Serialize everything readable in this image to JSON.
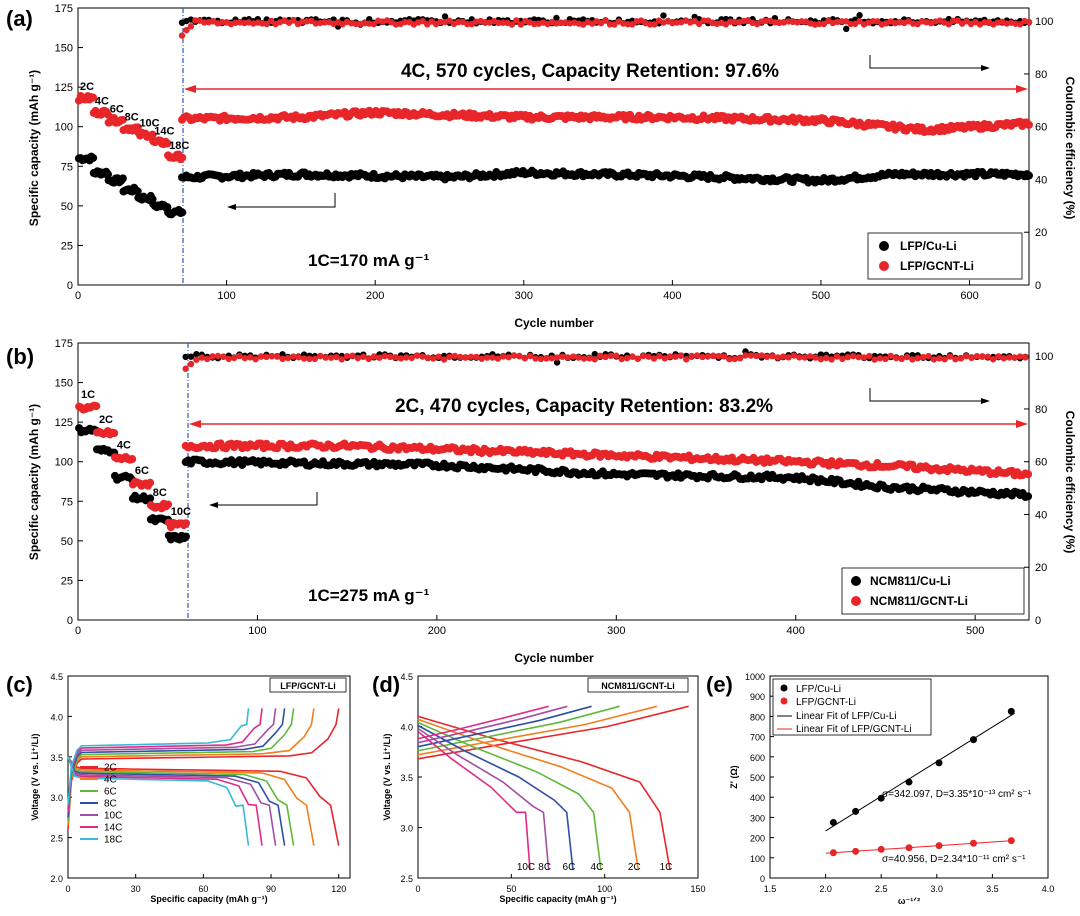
{
  "panels": {
    "a": {
      "label": "(a)",
      "xlabel": "Cycle number",
      "ylabel_left": "Specific capacity (mAh g⁻¹)",
      "ylabel_right": "Coulombic efficiency (%)",
      "xticks": [
        "0",
        "100",
        "200",
        "300",
        "400",
        "500",
        "600"
      ],
      "yticks_left": [
        "0",
        "25",
        "50",
        "75",
        "100",
        "125",
        "150",
        "175"
      ],
      "yticks_right": [
        "0",
        "20",
        "40",
        "60",
        "80",
        "100"
      ],
      "annotation": "4C, 570 cycles, Capacity Retention: 97.6%",
      "current_note": "1C=170 mA g⁻¹",
      "rate_labels": [
        "2C",
        "4C",
        "6C",
        "8C",
        "10C",
        "14C",
        "18C"
      ],
      "legend": [
        "LFP/Cu-Li",
        "LFP/GCNT-Li"
      ]
    },
    "b": {
      "label": "(b)",
      "xlabel": "Cycle number",
      "ylabel_left": "Specific capacity (mAh g⁻¹)",
      "ylabel_right": "Coulombic efficiency (%)",
      "xticks": [
        "0",
        "100",
        "200",
        "300",
        "400",
        "500"
      ],
      "yticks_left": [
        "0",
        "25",
        "50",
        "75",
        "100",
        "125",
        "150",
        "175"
      ],
      "yticks_right": [
        "0",
        "20",
        "40",
        "60",
        "80",
        "100"
      ],
      "annotation": "2C, 470 cycles, Capacity Retention: 83.2%",
      "current_note": "1C=275 mA g⁻¹",
      "rate_labels": [
        "1C",
        "2C",
        "4C",
        "6C",
        "8C",
        "10C"
      ],
      "legend": [
        "NCM811/Cu-Li",
        "NCM811/GCNT-Li"
      ]
    },
    "c": {
      "label": "(c)",
      "box": "LFP/GCNT-Li",
      "xlabel": "Specific capacity (mAh g⁻¹)",
      "ylabel": "Voltage (V vs. Li⁺/Li)",
      "xticks": [
        "0",
        "30",
        "60",
        "90",
        "120"
      ],
      "yticks": [
        "2.0",
        "2.5",
        "3.0",
        "3.5",
        "4.0",
        "4.5"
      ],
      "legend": [
        "2C",
        "4C",
        "6C",
        "8C",
        "10C",
        "14C",
        "18C"
      ]
    },
    "d": {
      "label": "(d)",
      "box": "NCM811/GCNT-Li",
      "xlabel": "Specific capacity (mAh g⁻¹)",
      "ylabel": "Voltage (V vs. Li⁺/Li)",
      "xticks": [
        "0",
        "50",
        "100",
        "150"
      ],
      "yticks": [
        "2.5",
        "3.0",
        "3.5",
        "4.0",
        "4.5"
      ],
      "curve_labels": [
        "10C",
        "8C",
        "6C",
        "4C",
        "2C",
        "1C"
      ]
    },
    "e": {
      "label": "(e)",
      "xlabel": "ω⁻¹ᐟ²",
      "ylabel": "Z′ (Ω)",
      "xticks": [
        "1.5",
        "2.0",
        "2.5",
        "3.0",
        "3.5",
        "4.0"
      ],
      "yticks": [
        "0",
        "100",
        "200",
        "300",
        "400",
        "500",
        "600",
        "700",
        "800",
        "900",
        "1000"
      ],
      "legend": [
        "LFP/Cu-Li",
        "LFP/GCNT-Li",
        "Linear Fit of LFP/Cu-Li",
        "Linear Fit of LFP/GCNT-Li"
      ],
      "fit1": "σ=342.097, D=3.35*10⁻¹³ cm² s⁻¹",
      "fit2": "σ=40.956, D=2.34*10⁻¹¹ cm² s⁻¹"
    }
  },
  "colors": {
    "red": "#e8262a",
    "black": "#000000",
    "blue": "#1f4e9e"
  },
  "chart_data": [
    {
      "id": "a",
      "type": "scatter",
      "xlim": [
        0,
        640
      ],
      "ylim": [
        0,
        175
      ],
      "y2lim": [
        0,
        105
      ],
      "series": [
        {
          "name": "LFP/Cu-Li capacity",
          "color": "black",
          "rate_steps": [
            [
              0,
              10,
              80
            ],
            [
              10,
              20,
              71
            ],
            [
              20,
              30,
              66
            ],
            [
              30,
              40,
              60
            ],
            [
              40,
              50,
              55
            ],
            [
              50,
              60,
              50
            ],
            [
              60,
              70,
              46
            ]
          ],
          "long": [
            [
              70,
              68
            ],
            [
              150,
              70
            ],
            [
              250,
              68
            ],
            [
              300,
              71
            ],
            [
              400,
              69
            ],
            [
              500,
              66
            ],
            [
              550,
              70
            ],
            [
              640,
              70
            ]
          ]
        },
        {
          "name": "LFP/GCNT-Li capacity",
          "color": "red",
          "rate_steps": [
            [
              0,
              10,
              118
            ],
            [
              10,
              20,
              109
            ],
            [
              20,
              30,
              104
            ],
            [
              30,
              40,
              99
            ],
            [
              40,
              50,
              95
            ],
            [
              50,
              60,
              90
            ],
            [
              60,
              70,
              81
            ]
          ],
          "long": [
            [
              70,
              105
            ],
            [
              150,
              106
            ],
            [
              200,
              109
            ],
            [
              300,
              106
            ],
            [
              400,
              106
            ],
            [
              500,
              104
            ],
            [
              570,
              98
            ],
            [
              640,
              102
            ]
          ]
        },
        {
          "name": "LFP/Cu-Li CE",
          "color": "black",
          "ce": 100
        },
        {
          "name": "LFP/GCNT-Li CE",
          "color": "red",
          "ce": 99.5
        }
      ]
    },
    {
      "id": "b",
      "type": "scatter",
      "xlim": [
        0,
        530
      ],
      "ylim": [
        0,
        175
      ],
      "y2lim": [
        0,
        105
      ],
      "series": [
        {
          "name": "NCM811/Cu-Li capacity",
          "color": "black",
          "rate_steps": [
            [
              0,
              10,
              120
            ],
            [
              10,
              20,
              107
            ],
            [
              20,
              30,
              90
            ],
            [
              30,
              40,
              77
            ],
            [
              40,
              50,
              63
            ],
            [
              50,
              60,
              52
            ]
          ],
          "long": [
            [
              60,
              100
            ],
            [
              200,
              98
            ],
            [
              300,
              92
            ],
            [
              400,
              90
            ],
            [
              450,
              84
            ],
            [
              530,
              79
            ]
          ]
        },
        {
          "name": "NCM811/GCNT-Li capacity",
          "color": "red",
          "rate_steps": [
            [
              0,
              10,
              134
            ],
            [
              10,
              20,
              118
            ],
            [
              20,
              30,
              102
            ],
            [
              30,
              40,
              86
            ],
            [
              40,
              50,
              72
            ],
            [
              50,
              60,
              60
            ]
          ],
          "long": [
            [
              60,
              110
            ],
            [
              150,
              110
            ],
            [
              250,
              106
            ],
            [
              350,
              102
            ],
            [
              400,
              100
            ],
            [
              460,
              97
            ],
            [
              530,
              92
            ]
          ]
        },
        {
          "name": "NCM811/Cu-Li CE",
          "color": "black",
          "ce": 100
        },
        {
          "name": "NCM811/GCNT-Li CE",
          "color": "red",
          "ce": 99.5
        }
      ]
    },
    {
      "id": "c",
      "type": "line",
      "xlim": [
        0,
        125
      ],
      "ylim": [
        2.0,
        4.5
      ],
      "series": [
        {
          "name": "2C",
          "color": "#e8262a",
          "cap": 120
        },
        {
          "name": "4C",
          "color": "#f07f1e",
          "cap": 109
        },
        {
          "name": "6C",
          "color": "#5fb83a",
          "cap": 100
        },
        {
          "name": "8C",
          "color": "#2e4fa3",
          "cap": 96
        },
        {
          "name": "10C",
          "color": "#a24ea3",
          "cap": 92
        },
        {
          "name": "14C",
          "color": "#e02a85",
          "cap": 86
        },
        {
          "name": "18C",
          "color": "#37b9d9",
          "cap": 80
        }
      ]
    },
    {
      "id": "d",
      "type": "line",
      "xlim": [
        0,
        150
      ],
      "ylim": [
        2.5,
        4.5
      ],
      "series": [
        {
          "name": "1C",
          "color": "#e8262a",
          "cap": 135
        },
        {
          "name": "2C",
          "color": "#f07f1e",
          "cap": 118
        },
        {
          "name": "4C",
          "color": "#5fb83a",
          "cap": 98
        },
        {
          "name": "6C",
          "color": "#2e4fa3",
          "cap": 83
        },
        {
          "name": "8C",
          "color": "#a24ea3",
          "cap": 70
        },
        {
          "name": "10C",
          "color": "#e02a85",
          "cap": 60
        }
      ]
    },
    {
      "id": "e",
      "type": "scatter",
      "xlim": [
        1.5,
        4.0
      ],
      "ylim": [
        0,
        1000
      ],
      "series": [
        {
          "name": "LFP/Cu-Li",
          "color": "black",
          "x": [
            2.07,
            2.27,
            2.5,
            2.75,
            3.02,
            3.33,
            3.67
          ],
          "y": [
            275,
            330,
            395,
            475,
            570,
            685,
            825
          ]
        },
        {
          "name": "LFP/GCNT-Li",
          "color": "red",
          "x": [
            2.07,
            2.27,
            2.5,
            2.75,
            3.02,
            3.33,
            3.67
          ],
          "y": [
            125,
            132,
            142,
            150,
            160,
            172,
            185
          ]
        }
      ],
      "fits": [
        {
          "slope": 342.097,
          "x": [
            2.0,
            3.7
          ]
        },
        {
          "slope": 40.956,
          "x": [
            2.0,
            3.7
          ]
        }
      ]
    }
  ]
}
